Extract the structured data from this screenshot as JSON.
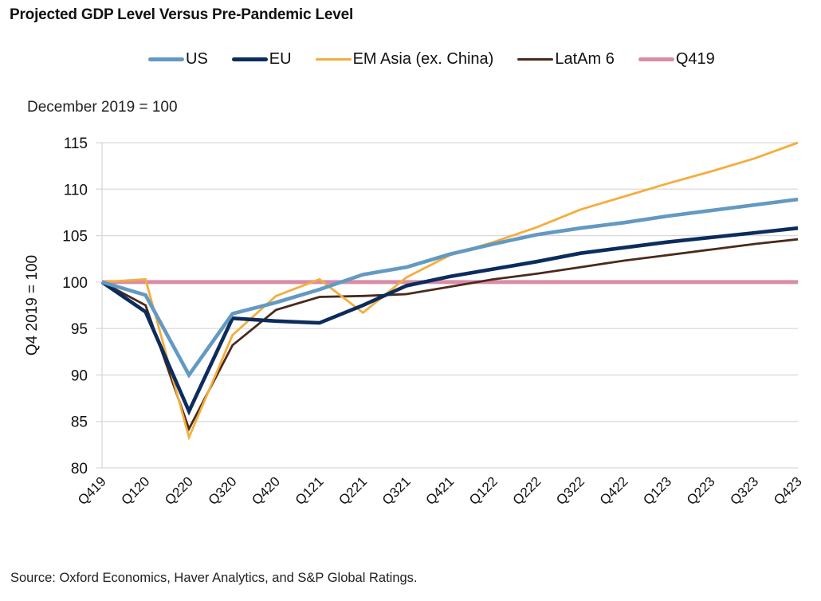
{
  "title": "Projected GDP Level Versus Pre-Pandemic Level",
  "subtitle": "December 2019 = 100",
  "source": "Source: Oxford Economics, Haver Analytics, and S&P Global Ratings.",
  "chart_data": {
    "type": "line",
    "title": "Projected GDP Level Versus Pre-Pandemic Level",
    "subtitle": "December 2019 = 100",
    "xlabel": "",
    "ylabel": "Q4 2019 = 100",
    "ylim": [
      80,
      115
    ],
    "yticks": [
      80,
      85,
      90,
      95,
      100,
      105,
      110,
      115
    ],
    "grid": true,
    "legend_position": "top",
    "categories": [
      "Q419",
      "Q120",
      "Q220",
      "Q320",
      "Q420",
      "Q121",
      "Q221",
      "Q321",
      "Q421",
      "Q122",
      "Q222",
      "Q322",
      "Q422",
      "Q123",
      "Q223",
      "Q323",
      "Q423"
    ],
    "series": [
      {
        "name": "Q419",
        "color": "#d98ca6",
        "values": [
          100,
          100,
          100,
          100,
          100,
          100,
          100,
          100,
          100,
          100,
          100,
          100,
          100,
          100,
          100,
          100,
          100
        ]
      },
      {
        "name": "LatAm 6",
        "color": "#4a2a1c",
        "values": [
          100,
          97.5,
          84.2,
          93.2,
          97.0,
          98.4,
          98.5,
          98.7,
          99.5,
          100.3,
          100.9,
          101.6,
          102.3,
          102.9,
          103.5,
          104.1,
          104.6
        ]
      },
      {
        "name": "EM Asia (ex. China)",
        "color": "#f5ad3c",
        "values": [
          100,
          100.3,
          83.3,
          94.3,
          98.5,
          100.3,
          96.7,
          100.5,
          102.9,
          104.3,
          105.9,
          107.8,
          109.2,
          110.6,
          111.9,
          113.3,
          115.0
        ]
      },
      {
        "name": "EU",
        "color": "#0c2c5c",
        "values": [
          100,
          96.8,
          86.1,
          96.1,
          95.8,
          95.6,
          97.5,
          99.6,
          100.6,
          101.4,
          102.2,
          103.1,
          103.7,
          104.3,
          104.8,
          105.3,
          105.8
        ]
      },
      {
        "name": "US",
        "color": "#6399c2",
        "values": [
          100,
          98.6,
          90.0,
          96.6,
          97.8,
          99.2,
          100.8,
          101.6,
          103.0,
          104.1,
          105.1,
          105.8,
          106.4,
          107.1,
          107.7,
          108.3,
          108.9
        ]
      }
    ],
    "legend": [
      {
        "name": "US",
        "color": "#6399c2"
      },
      {
        "name": "EU",
        "color": "#0c2c5c"
      },
      {
        "name": "EM Asia (ex. China)",
        "color": "#f5ad3c"
      },
      {
        "name": "LatAm 6",
        "color": "#4a2a1c"
      },
      {
        "name": "Q419",
        "color": "#d98ca6"
      }
    ]
  }
}
